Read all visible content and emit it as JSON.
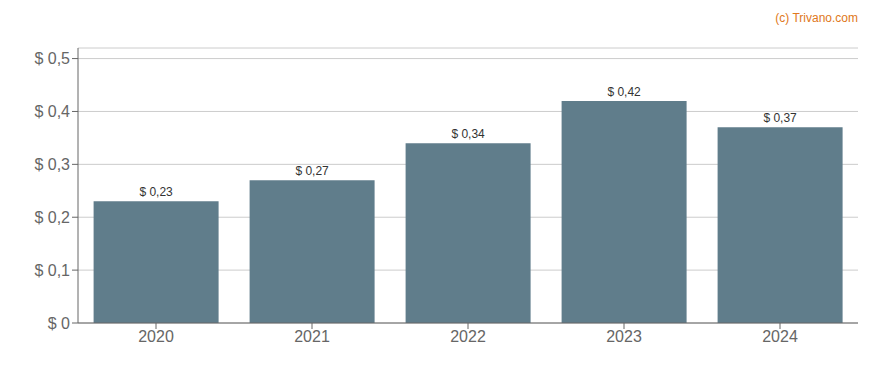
{
  "chart_data": {
    "type": "bar",
    "categories": [
      "2020",
      "2021",
      "2022",
      "2023",
      "2024"
    ],
    "values": [
      0.23,
      0.27,
      0.34,
      0.42,
      0.37
    ],
    "value_labels": [
      "$ 0,23",
      "$ 0,27",
      "$ 0,34",
      "$ 0,42",
      "$ 0,37"
    ],
    "color": "#607d8b",
    "ylim": [
      0,
      0.52
    ],
    "yticks": [
      {
        "value": 0.0,
        "label": "$ 0"
      },
      {
        "value": 0.1,
        "label": "$ 0,1"
      },
      {
        "value": 0.2,
        "label": "$ 0,2"
      },
      {
        "value": 0.3,
        "label": "$ 0,3"
      },
      {
        "value": 0.4,
        "label": "$ 0,4"
      },
      {
        "value": 0.5,
        "label": "$ 0,5"
      }
    ],
    "grid": true,
    "data_labels": true,
    "annotations": [
      {
        "text": "(c) Trivano.com",
        "color": "#e07820"
      }
    ]
  }
}
